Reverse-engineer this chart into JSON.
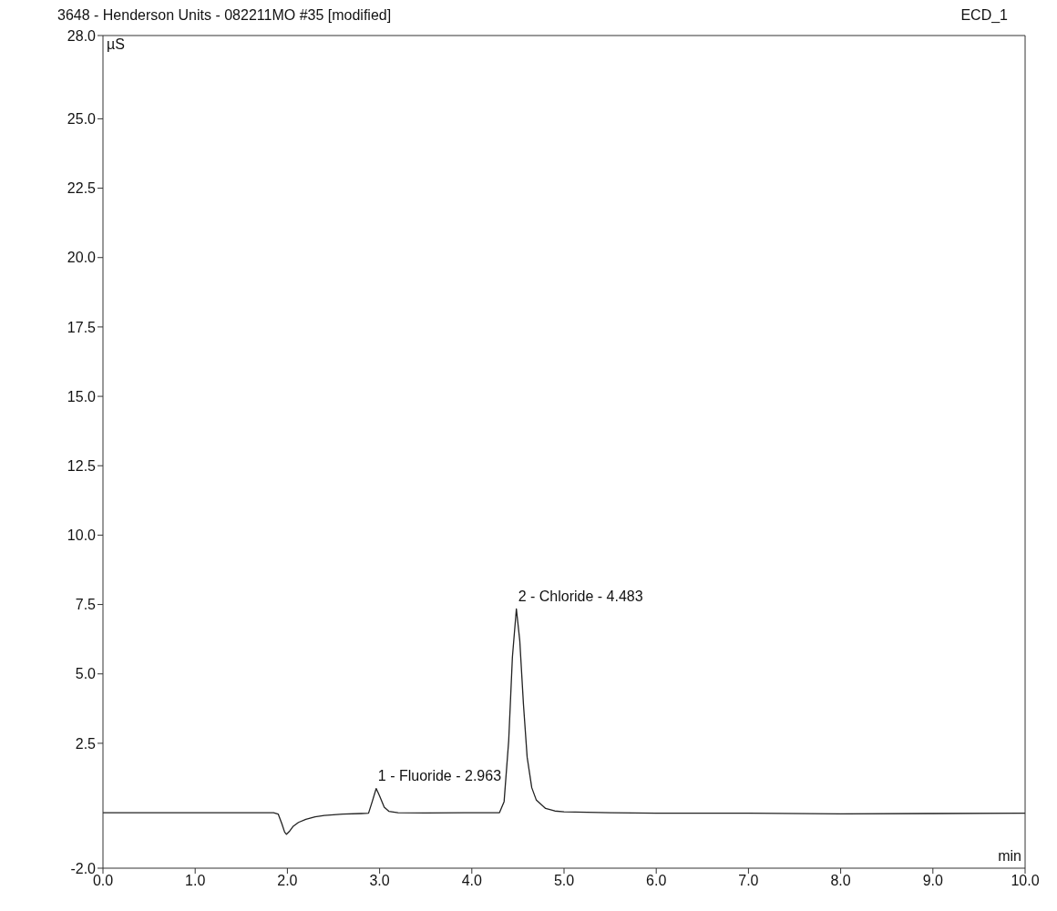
{
  "chart_data": {
    "type": "line",
    "title": "3648 - Henderson Units - 082211MO #35 [modified]",
    "subtitle": "ECD_1",
    "xlabel": "min",
    "ylabel": "µS",
    "xlim": [
      0,
      10
    ],
    "xticks": [
      {
        "value": 0,
        "label": "0.0"
      },
      {
        "value": 1,
        "label": "1.0"
      },
      {
        "value": 2,
        "label": "2.0"
      },
      {
        "value": 3,
        "label": "3.0"
      },
      {
        "value": 4,
        "label": "4.0"
      },
      {
        "value": 5,
        "label": "5.0"
      },
      {
        "value": 6,
        "label": "6.0"
      },
      {
        "value": 7,
        "label": "7.0"
      },
      {
        "value": 8,
        "label": "8.0"
      },
      {
        "value": 9,
        "label": "9.0"
      },
      {
        "value": 10,
        "label": "10.0"
      }
    ],
    "ylim": [
      -2,
      28
    ],
    "yticks": [
      {
        "value": -2,
        "label": "-2.0"
      },
      {
        "value": 2.5,
        "label": "2.5"
      },
      {
        "value": 5,
        "label": "5.0"
      },
      {
        "value": 7.5,
        "label": "7.5"
      },
      {
        "value": 10,
        "label": "10.0"
      },
      {
        "value": 12.5,
        "label": "12.5"
      },
      {
        "value": 15,
        "label": "15.0"
      },
      {
        "value": 17.5,
        "label": "17.5"
      },
      {
        "value": 20,
        "label": "20.0"
      },
      {
        "value": 22.5,
        "label": "22.5"
      },
      {
        "value": 25,
        "label": "25.0"
      },
      {
        "value": 28,
        "label": "28.0"
      }
    ],
    "grid": false,
    "legend": false,
    "marker": "none",
    "line_style": "solid",
    "x": [
      0,
      1,
      1.85,
      1.9,
      1.94,
      1.97,
      1.99,
      2.02,
      2.06,
      2.12,
      2.2,
      2.3,
      2.4,
      2.6,
      2.8,
      2.88,
      2.92,
      2.963,
      3,
      3.05,
      3.1,
      3.2,
      3.5,
      4,
      4.3,
      4.35,
      4.4,
      4.44,
      4.483,
      4.52,
      4.56,
      4.6,
      4.65,
      4.7,
      4.8,
      4.9,
      5,
      5.5,
      6,
      7,
      8,
      9,
      10
    ],
    "series": [
      {
        "color": "#222222",
        "values": [
          0,
          0,
          0,
          -0.05,
          -0.4,
          -0.7,
          -0.78,
          -0.68,
          -0.5,
          -0.35,
          -0.24,
          -0.15,
          -0.1,
          -0.05,
          -0.03,
          -0.02,
          0.4,
          0.87,
          0.6,
          0.2,
          0.05,
          0,
          -0.01,
          0,
          0,
          0.4,
          2.6,
          5.6,
          7.34,
          6.2,
          3.9,
          2,
          0.9,
          0.45,
          0.15,
          0.06,
          0.03,
          0,
          -0.02,
          -0.02,
          -0.04,
          -0.03,
          -0.02
        ]
      }
    ],
    "annotations": [
      {
        "text": "1 - Fluoride - 2.963",
        "x": 2.963,
        "y": 0.87
      },
      {
        "text": "2 - Chloride - 4.483",
        "x": 4.483,
        "y": 7.34
      }
    ]
  }
}
